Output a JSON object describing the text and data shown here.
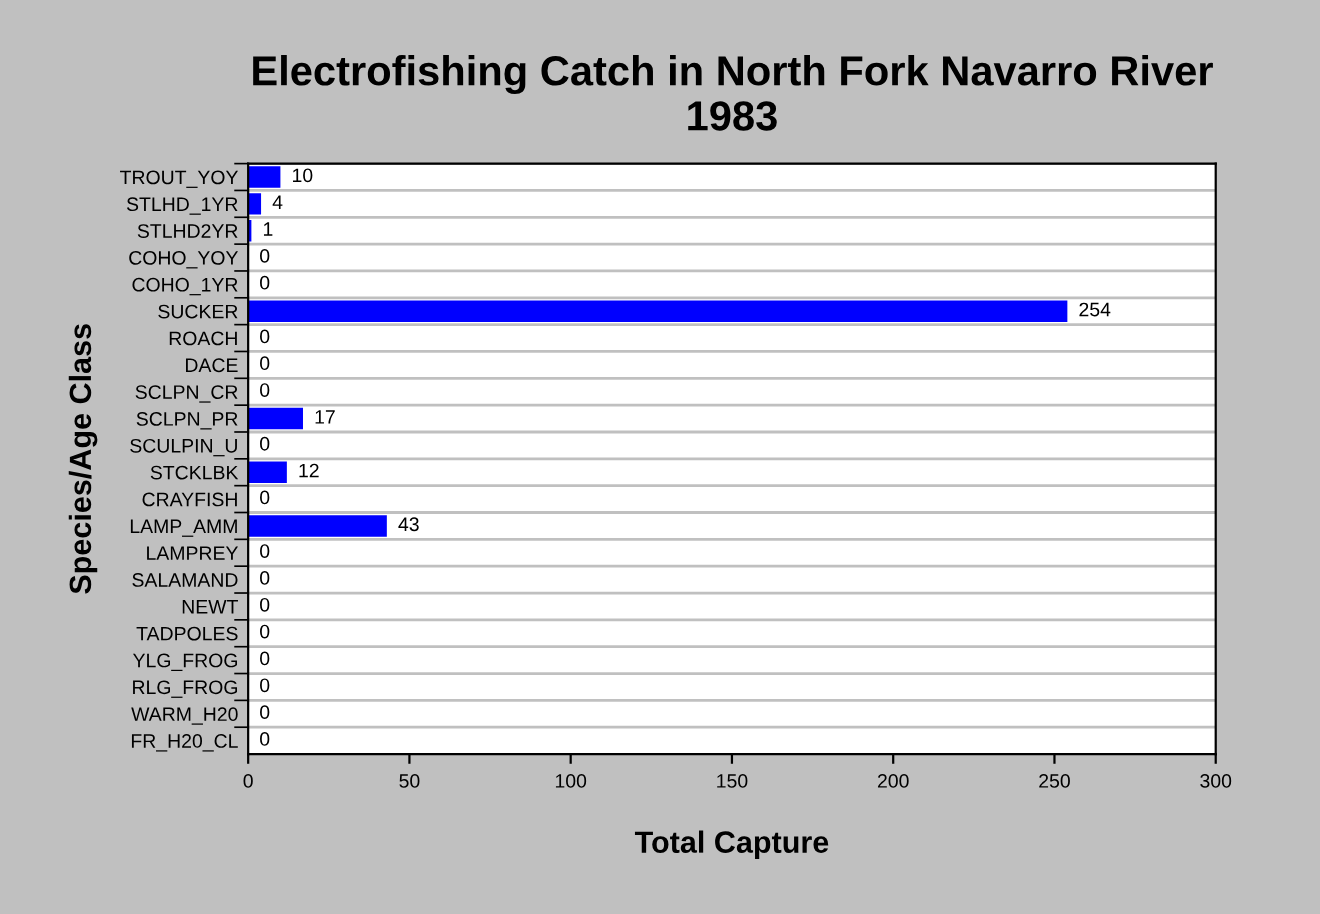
{
  "chart_data": {
    "type": "bar",
    "orientation": "horizontal",
    "title": "Electrofishing Catch in North Fork Navarro River\n1983",
    "xlabel": "Total Capture",
    "ylabel": "Species/Age Class",
    "categories": [
      "TROUT_YOY",
      "STLHD_1YR",
      "STLHD2YR",
      "COHO_YOY",
      "COHO_1YR",
      "SUCKER",
      "ROACH",
      "DACE",
      "SCLPN_CR",
      "SCLPN_PR",
      "SCULPIN_U",
      "STCKLBK",
      "CRAYFISH",
      "LAMP_AMM",
      "LAMPREY",
      "SALAMAND",
      "NEWT",
      "TADPOLES",
      "YLG_FROG",
      "RLG_FROG",
      "WARM_H20",
      "FR_H20_CL"
    ],
    "values": [
      10,
      4,
      1,
      0,
      0,
      254,
      0,
      0,
      0,
      17,
      0,
      12,
      0,
      43,
      0,
      0,
      0,
      0,
      0,
      0,
      0,
      0
    ],
    "color": "#0000ff",
    "xlim": [
      0,
      300
    ],
    "xticks": [
      0,
      50,
      100,
      150,
      200,
      250,
      300
    ],
    "grid": "y",
    "data_labels": true,
    "legend": false
  }
}
